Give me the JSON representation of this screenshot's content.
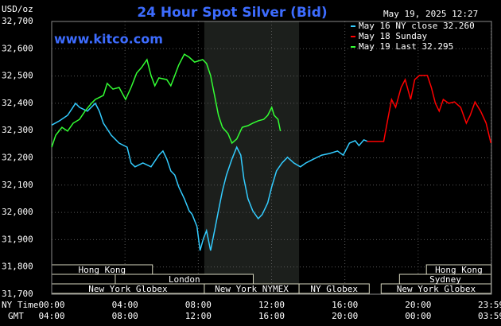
{
  "chart_data": {
    "type": "line",
    "title": "24 Hour Spot Silver (Bid)",
    "unit": "USD/oz",
    "timestamp": "May 19, 2025 12:27",
    "watermark": "www.kitco.com",
    "x_row_label": "NY Time",
    "x2_row_label": "GMT",
    "xlim": [
      0,
      24
    ],
    "xticks": [
      {
        "value": 0,
        "label": "00:00"
      },
      {
        "value": 4,
        "label": "04:00"
      },
      {
        "value": 8,
        "label": "08:00"
      },
      {
        "value": 12,
        "label": "12:00"
      },
      {
        "value": 16,
        "label": "16:00"
      },
      {
        "value": 20,
        "label": "20:00"
      },
      {
        "value": 23.983,
        "label": "23:59"
      }
    ],
    "x2ticks": [
      {
        "value": 0,
        "label": "04:00"
      },
      {
        "value": 4,
        "label": "08:00"
      },
      {
        "value": 8,
        "label": "12:00"
      },
      {
        "value": 12,
        "label": "16:00"
      },
      {
        "value": 16,
        "label": "20:00"
      },
      {
        "value": 20,
        "label": "00:00"
      },
      {
        "value": 23.983,
        "label": "03:59"
      }
    ],
    "ylim": [
      31700,
      32700
    ],
    "yticks": [
      {
        "value": 31700,
        "label": "31,700"
      },
      {
        "value": 31800,
        "label": "31,800"
      },
      {
        "value": 31900,
        "label": "31,900"
      },
      {
        "value": 32000,
        "label": "32,000"
      },
      {
        "value": 32100,
        "label": "32,100"
      },
      {
        "value": 32200,
        "label": "32,200"
      },
      {
        "value": 32300,
        "label": "32,300"
      },
      {
        "value": 32400,
        "label": "32,400"
      },
      {
        "value": 32500,
        "label": "32,500"
      },
      {
        "value": 32600,
        "label": "32,600"
      },
      {
        "value": 32700,
        "label": "32,700"
      }
    ],
    "grid": true,
    "legend": "top-right",
    "series": [
      {
        "name": "May 16 NY close 32.260",
        "color": "#33ccff",
        "x": [
          0,
          0.43,
          0.87,
          1.3,
          1.52,
          1.95,
          2.38,
          2.6,
          2.82,
          3.25,
          3.68,
          4.12,
          4.33,
          4.55,
          4.98,
          5.42,
          5.85,
          6.07,
          6.28,
          6.5,
          6.72,
          6.93,
          7.24,
          7.5,
          7.67,
          7.93,
          8.1,
          8.28,
          8.45,
          8.67,
          8.89,
          9.1,
          9.32,
          9.54,
          9.84,
          10.1,
          10.32,
          10.49,
          10.71,
          10.97,
          11.27,
          11.49,
          11.79,
          12.01,
          12.27,
          12.57,
          12.87,
          13.22,
          13.57,
          13.87,
          14.3,
          14.74,
          15.17,
          15.6,
          15.91,
          16.25,
          16.56,
          16.77,
          17.04,
          17.25
        ],
        "values": [
          32320,
          32336,
          32356,
          32400,
          32385,
          32371,
          32400,
          32371,
          32327,
          32283,
          32254,
          32239,
          32181,
          32167,
          32181,
          32167,
          32210,
          32225,
          32196,
          32152,
          32137,
          32094,
          32050,
          32006,
          31992,
          31948,
          31860,
          31904,
          31933,
          31860,
          31933,
          32006,
          32079,
          32137,
          32196,
          32239,
          32210,
          32123,
          32050,
          32006,
          31977,
          31992,
          32035,
          32094,
          32152,
          32181,
          32202,
          32181,
          32167,
          32181,
          32196,
          32210,
          32216,
          32225,
          32210,
          32254,
          32263,
          32245,
          32266,
          32260
        ]
      },
      {
        "name": "May 18 Sunday",
        "color": "#ff0000",
        "x": [
          17.21,
          18.12,
          18.34,
          18.55,
          18.77,
          19.07,
          19.29,
          19.59,
          19.81,
          20.07,
          20.29,
          20.5,
          20.72,
          20.94,
          21.15,
          21.37,
          21.67,
          21.98,
          22.32,
          22.63,
          22.84,
          23.1,
          23.41,
          23.71,
          23.97
        ],
        "values": [
          32260,
          32260,
          32341,
          32414,
          32385,
          32458,
          32487,
          32414,
          32487,
          32502,
          32502,
          32502,
          32458,
          32400,
          32371,
          32414,
          32400,
          32405,
          32385,
          32327,
          32356,
          32405,
          32371,
          32327,
          32254
        ]
      },
      {
        "name": "May 19 Last 32.295",
        "color": "#33ff33",
        "x": [
          0,
          0.22,
          0.56,
          0.87,
          1.17,
          1.52,
          1.82,
          2.17,
          2.38,
          2.82,
          3.03,
          3.34,
          3.68,
          4.03,
          4.33,
          4.64,
          4.9,
          5.2,
          5.42,
          5.63,
          5.85,
          6.28,
          6.5,
          6.72,
          6.93,
          7.24,
          7.5,
          7.8,
          8.24,
          8.45,
          8.67,
          8.89,
          9.1,
          9.32,
          9.62,
          9.84,
          10.1,
          10.4,
          10.71,
          10.97,
          11.27,
          11.57,
          11.79,
          12.01,
          12.14,
          12.35,
          12.48
        ],
        "values": [
          32239,
          32283,
          32312,
          32298,
          32327,
          32341,
          32371,
          32400,
          32414,
          32429,
          32473,
          32452,
          32458,
          32414,
          32458,
          32511,
          32531,
          32560,
          32502,
          32464,
          32493,
          32487,
          32464,
          32502,
          32540,
          32580,
          32569,
          32551,
          32560,
          32546,
          32502,
          32429,
          32356,
          32312,
          32289,
          32254,
          32269,
          32312,
          32318,
          32327,
          32336,
          32341,
          32356,
          32385,
          32356,
          32341,
          32298
        ]
      }
    ],
    "sessions": [
      {
        "label": "Hong Kong",
        "start": 0,
        "end": 5.5,
        "row": 0
      },
      {
        "label": "Hong Kong",
        "start": 20.45,
        "end": 23.983,
        "row": 0
      },
      {
        "label": "London",
        "start": 3.47,
        "end": 11,
        "row": 1
      },
      {
        "label": "Sydney",
        "start": 18.98,
        "end": 23.983,
        "row": 1
      },
      {
        "label": "New York Globex",
        "start": 0,
        "end": 8.33,
        "row": 2
      },
      {
        "label": "New York NYMEX",
        "start": 8.33,
        "end": 13.5,
        "row": 2,
        "highlight": true
      },
      {
        "label": "NY Globex",
        "start": 13.5,
        "end": 17.33,
        "row": 2
      },
      {
        "label": "New York Globex",
        "start": 17.98,
        "end": 23.983,
        "row": 2
      }
    ]
  }
}
